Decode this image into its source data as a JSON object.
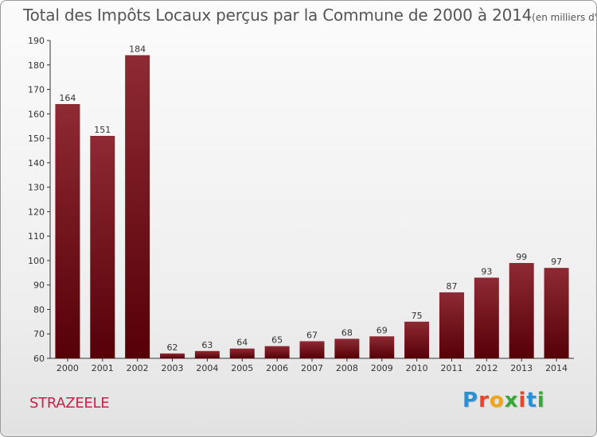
{
  "header": {
    "title": "Total des Impôts Locaux perçus par la Commune de 2000 à 2014",
    "unit": "(en milliers d'€)"
  },
  "footer": {
    "commune": "STRAZEELE",
    "logo_letters": [
      "P",
      "r",
      "o",
      "x",
      "i",
      "t",
      "i"
    ],
    "logo_colors": [
      "#2a8fd6",
      "#e8442e",
      "#f2a516",
      "#38a83a",
      "#e8442e",
      "#2a8fd6",
      "#38a83a"
    ]
  },
  "chart_data": {
    "type": "bar",
    "title": "Total des Impôts Locaux perçus par la Commune de 2000 à 2014",
    "xlabel": "",
    "ylabel": "",
    "categories": [
      "2000",
      "2001",
      "2002",
      "2003",
      "2004",
      "2005",
      "2006",
      "2007",
      "2008",
      "2009",
      "2010",
      "2011",
      "2012",
      "2013",
      "2014"
    ],
    "values": [
      164,
      151,
      184,
      62,
      63,
      64,
      65,
      67,
      68,
      69,
      75,
      87,
      93,
      99,
      97
    ],
    "ylim": [
      60,
      190
    ],
    "yticks": [
      60,
      70,
      80,
      90,
      100,
      110,
      120,
      130,
      140,
      150,
      160,
      170,
      180,
      190
    ],
    "grid": false,
    "bar_color": "#8b1f28"
  }
}
